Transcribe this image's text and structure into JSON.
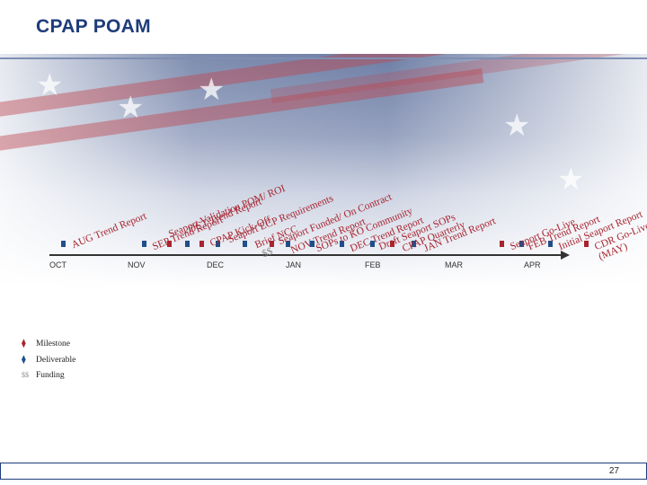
{
  "title": "CPAP POAM",
  "months": [
    "OCT",
    "NOV",
    "DEC",
    "JAN",
    "FEB",
    "MAR",
    "APR"
  ],
  "tasks": [
    {
      "label": "AUG Trend Report",
      "color": "#1f4f8a"
    },
    {
      "label": "SEP Trend Report",
      "color": "#1f4f8a"
    },
    {
      "label": "Seaport Validation POM/ ROI",
      "color": "#a8242f"
    },
    {
      "label": "OCT Trend Report",
      "color": "#1f4f8a"
    },
    {
      "label": "CPAP Kick-Off",
      "color": "#a8242f"
    },
    {
      "label": "Seaport ECP Requirements",
      "color": "#1f4f8a"
    },
    {
      "label": "Brief NCC",
      "color": "#1f4f8a"
    },
    {
      "label": "$$",
      "color": "#888888"
    },
    {
      "label": "Seaport Funded/ On Contract",
      "color": "#a8242f"
    },
    {
      "label": "NOV Trend Report",
      "color": "#1f4f8a"
    },
    {
      "label": "SOPs to KO Community",
      "color": "#1f4f8a"
    },
    {
      "label": "DEC Trend Report",
      "color": "#1f4f8a"
    },
    {
      "label": "Draft Seaport SOPs",
      "color": "#1f4f8a"
    },
    {
      "label": "CPAP Quarterly",
      "color": "#a8242f"
    },
    {
      "label": "JAN Trend Report",
      "color": "#1f4f8a"
    },
    {
      "label": "Seaport Go-Live",
      "color": "#a8242f"
    },
    {
      "label": "FEB Trend Report",
      "color": "#1f4f8a"
    },
    {
      "label": "Initial Seaport Report",
      "color": "#1f4f8a"
    },
    {
      "label": "CDR Go-Live (MAY)",
      "color": "#a8242f"
    }
  ],
  "legend": [
    {
      "symbol": "⧫",
      "color": "#a8242f",
      "label": "Milestone"
    },
    {
      "symbol": "⧫",
      "color": "#1f4f8a",
      "label": "Deliverable"
    },
    {
      "symbol": "$$",
      "color": "#888888",
      "label": "Funding"
    }
  ],
  "page_number": "27"
}
